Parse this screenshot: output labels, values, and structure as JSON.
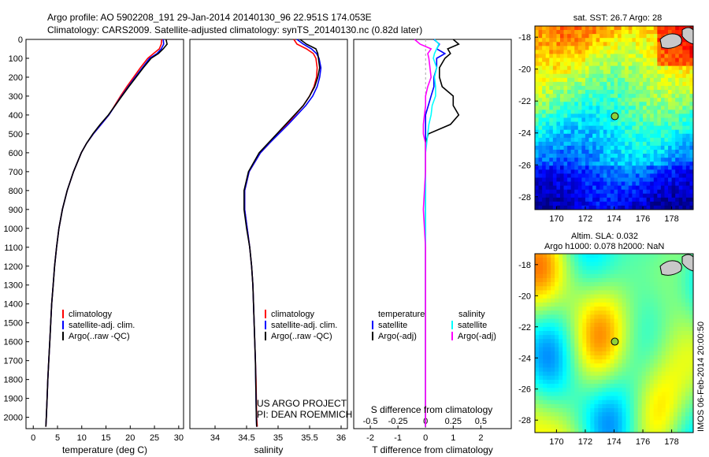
{
  "header": {
    "line1": "Argo profile: AO 5902208_191 29-Jan-2014 20140130_96 22.951S 174.053E",
    "line2": "Climatology: CARS2009. Satellite-adjusted climatology: synTS_20140130.nc (0.82d later)"
  },
  "colors": {
    "climatology": "#ff0000",
    "satellite": "#0000ff",
    "argo": "#000000",
    "satellite_s": "#00ffff",
    "argo_s": "#ff00ff"
  },
  "depth_axis": {
    "ylim": [
      2060,
      0
    ],
    "ticks": [
      "0",
      "100",
      "200",
      "300",
      "400",
      "500",
      "600",
      "700",
      "800",
      "900",
      "1000",
      "1100",
      "1200",
      "1300",
      "1400",
      "1500",
      "1600",
      "1700",
      "1800",
      "1900",
      "2000"
    ]
  },
  "chart_data": [
    {
      "type": "line",
      "id": "temperature",
      "xlabel": "temperature (deg C)",
      "xlim": [
        -1.5,
        31
      ],
      "xticks": [
        "0",
        "5",
        "10",
        "15",
        "20",
        "25",
        "30"
      ],
      "y": [
        0,
        25,
        50,
        75,
        100,
        150,
        200,
        250,
        300,
        350,
        400,
        450,
        500,
        550,
        600,
        700,
        800,
        900,
        1000,
        1100,
        1200,
        1300,
        1400,
        1500,
        1600,
        1700,
        1800,
        1900,
        2000,
        2050
      ],
      "series": [
        {
          "name": "climatology",
          "color_key": "climatology",
          "values": [
            26.5,
            26.4,
            26.0,
            24.8,
            23.6,
            22.1,
            20.7,
            19.3,
            18.0,
            16.8,
            15.6,
            14.0,
            12.4,
            11.0,
            9.9,
            8.3,
            7.0,
            6.0,
            5.3,
            4.8,
            4.4,
            4.1,
            3.8,
            3.6,
            3.4,
            3.2,
            3.0,
            2.85,
            2.7,
            2.6
          ]
        },
        {
          "name": "satellite-adj. clim.",
          "color_key": "satellite",
          "values": [
            26.8,
            26.9,
            26.4,
            25.5,
            24.0,
            22.5,
            21.0,
            19.6,
            18.2,
            16.9,
            15.6,
            14.0,
            12.4,
            11.0,
            9.9,
            8.3,
            7.0,
            6.0,
            5.3,
            4.8,
            4.4,
            4.1,
            3.8,
            3.6,
            3.4,
            3.2,
            3.0,
            2.85,
            2.7,
            2.6
          ]
        },
        {
          "name": "Argo(..raw -QC)",
          "color_key": "argo",
          "values": [
            27.4,
            27.6,
            26.8,
            25.8,
            24.3,
            22.7,
            21.2,
            19.7,
            18.3,
            16.9,
            15.5,
            13.8,
            12.3,
            11.0,
            9.9,
            8.3,
            7.0,
            6.0,
            5.3,
            4.8,
            4.4,
            4.1,
            3.8,
            3.6,
            3.4,
            3.2,
            3.0,
            2.85,
            2.7,
            2.6
          ]
        }
      ],
      "legend": {
        "position": "lower-left",
        "entries": [
          "climatology",
          "satellite-adj. clim.",
          "Argo(..raw -QC)"
        ]
      }
    },
    {
      "type": "line",
      "id": "salinity",
      "xlabel": "salinity",
      "xlim": [
        33.6,
        36.1
      ],
      "xticks": [
        "34",
        "34.5",
        "35",
        "35.5",
        "36"
      ],
      "y": [
        0,
        25,
        50,
        75,
        100,
        150,
        200,
        250,
        300,
        350,
        400,
        450,
        500,
        550,
        600,
        700,
        800,
        900,
        1000,
        1100,
        1200,
        1300,
        1400,
        1500,
        1600,
        1700,
        1800,
        1900,
        2000,
        2050
      ],
      "series": [
        {
          "name": "climatology",
          "color_key": "climatology",
          "values": [
            35.25,
            35.3,
            35.45,
            35.56,
            35.6,
            35.62,
            35.61,
            35.57,
            35.5,
            35.4,
            35.27,
            35.14,
            35.0,
            34.86,
            34.72,
            34.54,
            34.47,
            34.47,
            34.51,
            34.55,
            34.58,
            34.6,
            34.61,
            34.62,
            34.63,
            34.64,
            34.65,
            34.655,
            34.66,
            34.67
          ]
        },
        {
          "name": "satellite-adj. clim.",
          "color_key": "satellite",
          "values": [
            35.3,
            35.4,
            35.53,
            35.61,
            35.65,
            35.68,
            35.66,
            35.62,
            35.55,
            35.44,
            35.3,
            35.16,
            35.01,
            34.86,
            34.72,
            34.54,
            34.47,
            34.47,
            34.51,
            34.55,
            34.58,
            34.6,
            34.61,
            34.62,
            34.63,
            34.64,
            34.645,
            34.65,
            34.655,
            34.66
          ]
        },
        {
          "name": "Argo(..raw -QC)",
          "color_key": "argo",
          "values": [
            35.35,
            35.45,
            35.6,
            35.63,
            35.64,
            35.66,
            35.63,
            35.58,
            35.5,
            35.4,
            35.26,
            35.12,
            34.98,
            34.84,
            34.7,
            34.53,
            34.46,
            34.46,
            34.5,
            34.55,
            34.58,
            34.6,
            34.61,
            34.62,
            34.63,
            34.64,
            34.645,
            34.65,
            34.655,
            34.66
          ]
        }
      ],
      "legend": {
        "position": "lower-center",
        "entries": [
          "climatology",
          "satellite-adj. clim.",
          "Argo(..raw -QC)"
        ]
      },
      "annotation": {
        "line1": "US ARGO PROJECT",
        "line2": "PI: DEAN ROEMMICH"
      }
    },
    {
      "type": "line",
      "id": "differences",
      "xlabel": "T difference from climatology",
      "xlabel_top": "S difference from climatology",
      "xlim": [
        -2.6,
        3.1
      ],
      "xticks": [
        "-2",
        "-1",
        "0",
        "1",
        "2"
      ],
      "xticks_s": [
        "-0.5",
        "-0.25",
        "0",
        "0.25",
        "0.5"
      ],
      "y": [
        0,
        25,
        50,
        75,
        100,
        150,
        200,
        250,
        300,
        350,
        400,
        450,
        500,
        550,
        600,
        700,
        800,
        900,
        1000,
        1100,
        1200,
        1300,
        1400,
        1500,
        1600,
        1700,
        1800,
        1900,
        2000,
        2050
      ],
      "series": [
        {
          "name": "satellite",
          "group": "temperature",
          "color_key": "satellite",
          "values": [
            0.3,
            0.5,
            0.4,
            0.7,
            0.4,
            0.4,
            0.3,
            0.3,
            0.2,
            0.1,
            0.0,
            0.0,
            0.0,
            0.0,
            0.0,
            0.0,
            0.0,
            0.0,
            0.0,
            0.0,
            0.0,
            0.0,
            0.0,
            0.0,
            0.0,
            0.0,
            0.0,
            0.0,
            0.0,
            0.0
          ]
        },
        {
          "name": "Argo(-adj)",
          "group": "temperature",
          "color_key": "argo",
          "values": [
            1.0,
            1.2,
            0.8,
            0.9,
            0.7,
            0.5,
            0.5,
            0.6,
            1.0,
            1.0,
            1.2,
            0.9,
            0.1,
            0.0,
            0.0,
            0.0,
            0.0,
            0.0,
            0.0,
            0.0,
            0.0,
            0.0,
            0.0,
            0.0,
            0.0,
            0.0,
            0.0,
            0.0,
            0.0,
            0.0
          ]
        },
        {
          "name": "satellite",
          "group": "salinity",
          "color_key": "satellite_s",
          "values": [
            0.08,
            0.12,
            0.1,
            0.08,
            0.07,
            0.1,
            0.08,
            0.09,
            0.09,
            0.06,
            0.05,
            0.03,
            0.02,
            0.01,
            0.0,
            0.0,
            0.0,
            0.0,
            0.0,
            0.0,
            0.0,
            0.0,
            0.0,
            0.0,
            0.0,
            0.0,
            0.0,
            0.0,
            0.0,
            0.0
          ]
        },
        {
          "name": "Argo(-adj)",
          "group": "salinity",
          "color_key": "argo_s",
          "values": [
            -0.1,
            -0.05,
            0.05,
            0.02,
            0.03,
            0.04,
            0.05,
            0.02,
            0.0,
            0.0,
            -0.01,
            -0.02,
            -0.02,
            0.0,
            0.0,
            0.0,
            -0.01,
            -0.02,
            -0.01,
            0.0,
            0.0,
            0.0,
            0.0,
            0.0,
            0.0,
            0.0,
            0.0,
            0.0,
            0.0,
            0.0
          ]
        }
      ],
      "legend": {
        "position": "lower-center",
        "temperature_title": "temperature",
        "salinity_title": "salinity",
        "entries": [
          "satellite",
          "Argo(-adj)",
          "satellite",
          "Argo(-adj)"
        ]
      }
    },
    {
      "type": "heatmap",
      "id": "sst-map",
      "title": "sat. SST: 26.7 Argo: 28",
      "xlim": [
        168.5,
        179.5
      ],
      "ylim": [
        -28.8,
        -17.3
      ],
      "xticks": [
        "170",
        "172",
        "174",
        "176",
        "178"
      ],
      "yticks": [
        "-18",
        "-20",
        "-22",
        "-24",
        "-26",
        "-28"
      ],
      "marker": {
        "lon": 174.053,
        "lat": -22.951
      }
    },
    {
      "type": "heatmap",
      "id": "sla-map",
      "title_line1": "Altim. SLA: 0.032",
      "title_line2": "Argo h1000: 0.078 h2000: NaN",
      "xlim": [
        168.5,
        179.5
      ],
      "ylim": [
        -28.8,
        -17.3
      ],
      "xticks": [
        "170",
        "172",
        "174",
        "176",
        "178"
      ],
      "yticks": [
        "-18",
        "-20",
        "-22",
        "-24",
        "-26",
        "-28"
      ],
      "marker": {
        "lon": 174.053,
        "lat": -22.951
      }
    }
  ],
  "side_label": "IMOS 06-Feb-2014 20:00:50"
}
